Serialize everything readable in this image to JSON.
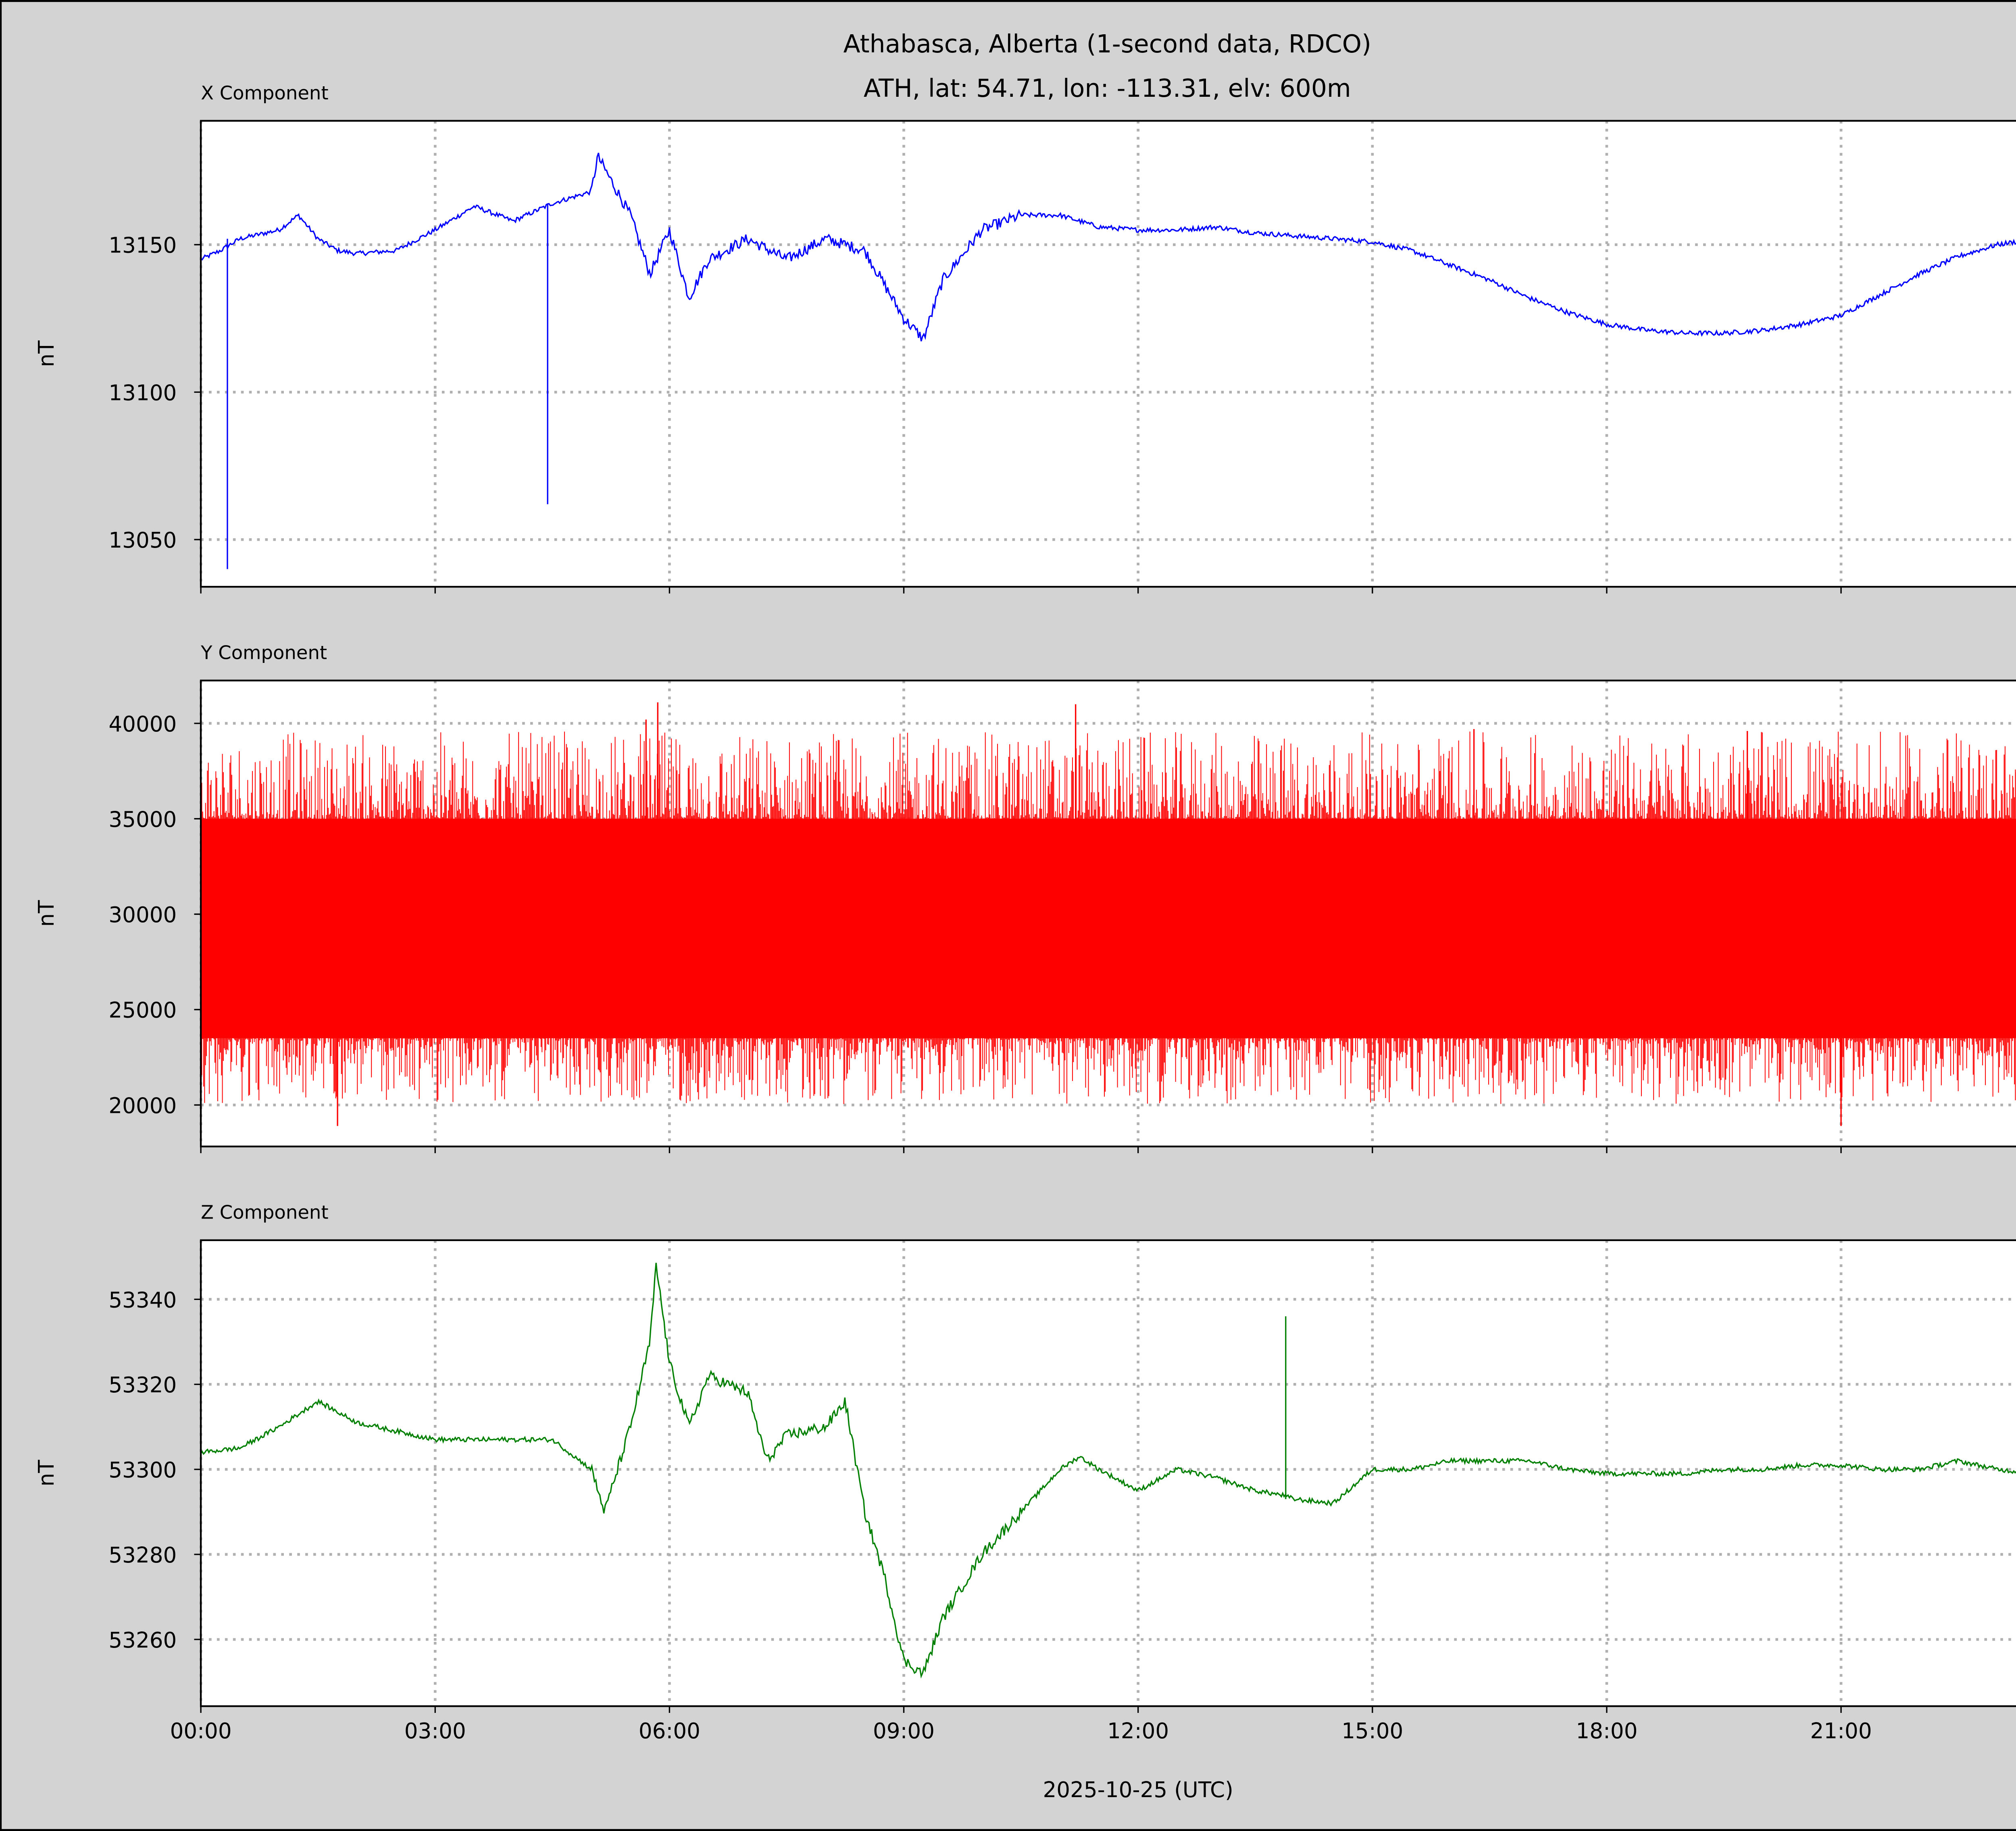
{
  "chart_data": {
    "type": "line",
    "title": [
      "Athabasca, Alberta (1-second data, RDCO)",
      "ATH, lat: 54.71, lon: -113.31, elv: 600m"
    ],
    "xlabel": "2025-10-25 (UTC)",
    "x_unit": "hours UTC",
    "xlim": [
      0,
      24
    ],
    "x_ticks": [
      0,
      3,
      6,
      9,
      12,
      15,
      18,
      21
    ],
    "x_tick_labels": [
      "00:00",
      "03:00",
      "06:00",
      "09:00",
      "12:00",
      "15:00",
      "18:00",
      "21:00"
    ],
    "grid": "dotted",
    "background": "#d3d3d3",
    "panels": [
      {
        "title": "X Component",
        "ylabel": "nT",
        "color": "#0000ff",
        "ylim": [
          13034,
          13192
        ],
        "y_ticks": [
          13050,
          13100,
          13150
        ],
        "y_tick_labels": [
          "13050",
          "13100",
          "13150"
        ],
        "x": [
          0,
          0.25,
          0.5,
          1,
          1.25,
          1.5,
          1.75,
          2,
          2.5,
          3,
          3.5,
          4,
          4.5,
          5,
          5.08,
          5.5,
          5.75,
          6,
          6.25,
          6.5,
          7,
          7.5,
          8,
          8.5,
          9,
          9.25,
          9.5,
          10,
          10.5,
          11,
          11.5,
          12,
          12.5,
          13,
          13.5,
          14,
          14.5,
          15,
          15.5,
          16,
          16.5,
          17,
          17.5,
          18,
          18.5,
          19,
          19.5,
          20,
          20.5,
          21,
          21.5,
          22,
          22.5,
          23,
          23.5,
          24
        ],
        "y": [
          13145,
          13148,
          13152,
          13155,
          13160,
          13152,
          13148,
          13147,
          13148,
          13155,
          13163,
          13158,
          13164,
          13168,
          13180,
          13160,
          13140,
          13155,
          13132,
          13145,
          13152,
          13145,
          13152,
          13148,
          13125,
          13118,
          13138,
          13155,
          13160,
          13160,
          13156,
          13155,
          13155,
          13156,
          13154,
          13153,
          13152,
          13151,
          13148,
          13143,
          13138,
          13132,
          13127,
          13123,
          13121,
          13120,
          13120,
          13121,
          13123,
          13126,
          13133,
          13140,
          13146,
          13150,
          13152,
          13150
        ],
        "spikes": [
          {
            "x": 0.34,
            "y": 13040
          },
          {
            "x": 4.44,
            "y": 13062
          }
        ]
      },
      {
        "title": "Y Component",
        "ylabel": "nT",
        "color": "#ff0000",
        "ylim": [
          17825,
          42246
        ],
        "y_ticks": [
          20000,
          25000,
          30000,
          35000,
          40000
        ],
        "y_tick_labels": [
          "20000",
          "25000",
          "30000",
          "35000",
          "40000"
        ],
        "band_low": 23500,
        "band_high": 35000,
        "extreme_low": 18900,
        "extreme_high": 41100,
        "spikes": [
          {
            "x": 5.85,
            "y": 41100
          },
          {
            "x": 11.2,
            "y": 41000
          },
          {
            "x": 1.75,
            "y": 18900
          },
          {
            "x": 21.0,
            "y": 18900
          },
          {
            "x": 5.7,
            "y": 40200
          },
          {
            "x": 16.3,
            "y": 39700
          },
          {
            "x": 19.8,
            "y": 39600
          }
        ]
      },
      {
        "title": "Z Component",
        "ylabel": "nT",
        "color": "#008000",
        "ylim": [
          53244.3,
          53353.9
        ],
        "y_ticks": [
          53260,
          53280,
          53300,
          53320,
          53340
        ],
        "y_tick_labels": [
          "53260",
          "53280",
          "53300",
          "53320",
          "53340"
        ],
        "x": [
          0,
          0.5,
          1,
          1.5,
          2,
          2.5,
          3,
          3.5,
          4,
          4.5,
          5,
          5.17,
          5.5,
          5.75,
          5.83,
          6,
          6.25,
          6.5,
          7,
          7.25,
          7.5,
          8,
          8.25,
          8.5,
          8.75,
          9,
          9.25,
          9.5,
          10,
          10.5,
          11,
          11.25,
          11.5,
          12,
          12.5,
          13,
          13.5,
          13.83,
          14,
          14.5,
          15,
          15.5,
          16,
          16.5,
          17,
          17.5,
          18,
          18.5,
          19,
          19.5,
          20,
          20.5,
          21,
          21.5,
          22,
          22.5,
          23,
          23.5,
          24
        ],
        "y": [
          53304,
          53305,
          53310,
          53316,
          53311,
          53309,
          53307,
          53307,
          53307,
          53307,
          53300,
          53290,
          53310,
          53330,
          53348,
          53325,
          53310,
          53322,
          53318,
          53302,
          53308,
          53310,
          53316,
          53290,
          53275,
          53255,
          53252,
          53265,
          53280,
          53290,
          53300,
          53303,
          53300,
          53295,
          53300,
          53298,
          53295,
          53294,
          53293,
          53292,
          53300,
          53300,
          53302,
          53302,
          53302,
          53300,
          53299,
          53299,
          53299,
          53300,
          53300,
          53301,
          53301,
          53300,
          53300,
          53302,
          53300,
          53299,
          53298
        ],
        "spikes": [
          {
            "x": 13.89,
            "y": 53336
          }
        ]
      }
    ]
  }
}
